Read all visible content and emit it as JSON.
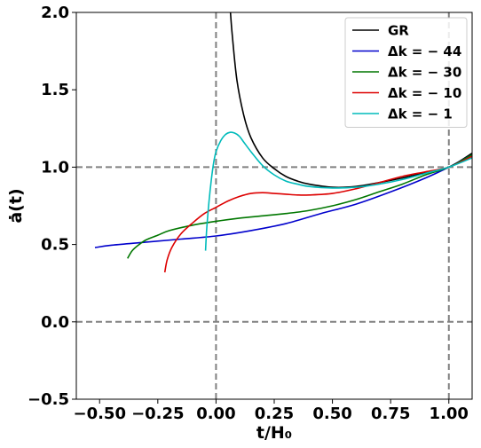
{
  "chart_data": {
    "type": "line",
    "xlabel": "t/H₀",
    "ylabel": "ȧ(t)",
    "xlim": [
      -0.6,
      1.1
    ],
    "ylim": [
      -0.5,
      2.0
    ],
    "x_ticks": [
      "−0.50",
      "−0.25",
      "0.00",
      "0.25",
      "0.50",
      "0.75",
      "1.00"
    ],
    "x_tick_values": [
      -0.5,
      -0.25,
      0.0,
      0.25,
      0.5,
      0.75,
      1.0
    ],
    "y_ticks": [
      "−0.5",
      "0.0",
      "0.5",
      "1.0",
      "1.5",
      "2.0"
    ],
    "y_tick_values": [
      -0.5,
      0.0,
      0.5,
      1.0,
      1.5,
      2.0
    ],
    "reference_lines": {
      "vertical": [
        0.0,
        1.0
      ],
      "horizontal": [
        0.0,
        1.0
      ],
      "style": "dashed",
      "color": "#808080"
    },
    "grid": false,
    "legend_position": "top-right",
    "series": [
      {
        "name": "GR",
        "color": "#000000",
        "x": [
          0.062,
          0.07,
          0.09,
          0.12,
          0.15,
          0.2,
          0.25,
          0.3,
          0.35,
          0.4,
          0.5,
          0.6,
          0.7,
          0.8,
          0.9,
          1.0,
          1.1
        ],
        "y": [
          2.0,
          1.85,
          1.56,
          1.33,
          1.19,
          1.06,
          0.99,
          0.94,
          0.91,
          0.89,
          0.87,
          0.875,
          0.9,
          0.93,
          0.965,
          1.0,
          1.09
        ]
      },
      {
        "name": "Δk = − 44",
        "color": "#0000cc",
        "x": [
          -0.52,
          -0.45,
          -0.3,
          -0.15,
          0.0,
          0.15,
          0.3,
          0.45,
          0.6,
          0.75,
          0.9,
          1.0,
          1.1
        ],
        "y": [
          0.48,
          0.495,
          0.515,
          0.535,
          0.555,
          0.59,
          0.635,
          0.7,
          0.76,
          0.84,
          0.93,
          1.0,
          1.08
        ]
      },
      {
        "name": "Δk = − 30",
        "color": "#007700",
        "x": [
          -0.38,
          -0.36,
          -0.33,
          -0.3,
          -0.25,
          -0.2,
          -0.1,
          0.0,
          0.1,
          0.2,
          0.3,
          0.4,
          0.5,
          0.6,
          0.7,
          0.8,
          0.9,
          1.0,
          1.1
        ],
        "y": [
          0.41,
          0.46,
          0.5,
          0.53,
          0.56,
          0.59,
          0.625,
          0.65,
          0.67,
          0.685,
          0.7,
          0.72,
          0.75,
          0.79,
          0.84,
          0.89,
          0.95,
          1.0,
          1.08
        ]
      },
      {
        "name": "Δk = − 10",
        "color": "#dd0000",
        "x": [
          -0.22,
          -0.21,
          -0.19,
          -0.15,
          -0.1,
          -0.05,
          0.0,
          0.05,
          0.1,
          0.15,
          0.2,
          0.25,
          0.3,
          0.35,
          0.4,
          0.5,
          0.6,
          0.7,
          0.8,
          0.9,
          1.0,
          1.1
        ],
        "y": [
          0.32,
          0.4,
          0.48,
          0.57,
          0.64,
          0.7,
          0.74,
          0.78,
          0.81,
          0.83,
          0.835,
          0.83,
          0.825,
          0.82,
          0.82,
          0.83,
          0.86,
          0.9,
          0.94,
          0.97,
          1.0,
          1.07
        ]
      },
      {
        "name": "Δk = − 1",
        "color": "#00bbbb",
        "x": [
          -0.045,
          -0.04,
          -0.03,
          -0.02,
          -0.01,
          0.0,
          0.02,
          0.04,
          0.06,
          0.08,
          0.1,
          0.12,
          0.15,
          0.2,
          0.25,
          0.3,
          0.35,
          0.4,
          0.5,
          0.6,
          0.7,
          0.8,
          0.9,
          1.0,
          1.1
        ],
        "y": [
          0.46,
          0.6,
          0.78,
          0.92,
          1.03,
          1.1,
          1.17,
          1.21,
          1.225,
          1.22,
          1.2,
          1.16,
          1.1,
          1.01,
          0.95,
          0.91,
          0.89,
          0.875,
          0.865,
          0.87,
          0.89,
          0.92,
          0.96,
          1.0,
          1.06
        ]
      }
    ]
  }
}
